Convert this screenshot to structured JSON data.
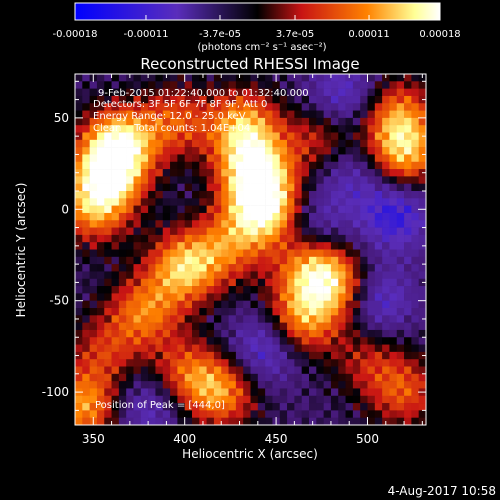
{
  "chart_data": {
    "type": "heatmap",
    "title": "Reconstructed RHESSI Image",
    "xlabel": "Heliocentric X (arcsec)",
    "ylabel": "Heliocentric Y (arcsec)",
    "xlim": [
      340,
      532
    ],
    "ylim": [
      -118,
      74
    ],
    "x_ticks": [
      350,
      400,
      450,
      500
    ],
    "y_ticks": [
      -100,
      -50,
      0,
      50
    ],
    "grid": false,
    "colormap": "blue-purple-red-yellow-white",
    "colors": {
      "background": "#000000",
      "low": "#0000ff",
      "mid_low": "#5a2dbb",
      "mid": "#c81414",
      "mid_high": "#ff8200",
      "high": "#ffff96",
      "top": "#ffffff"
    },
    "colorbar": {
      "range": [
        -0.00018,
        0.00018
      ],
      "tick_values": [
        -0.00018,
        -0.00011,
        -3.7e-05,
        3.7e-05,
        0.00011,
        0.00018
      ],
      "tick_labels": [
        "-0.00018",
        "-0.00011",
        "-3.7e-05",
        "3.7e-05",
        "0.00011",
        "0.00018"
      ],
      "unit_text": "(photons cm⁻² s⁻¹ asec⁻²)"
    },
    "annotations": {
      "time_range": "9-Feb-2015 01:22:40.000 to 01:32:40.000",
      "detectors": "Detectors: 3F 5F 6F 7F 8F 9F, Att 0",
      "energy_range": "Energy Range: 12.0 - 25.0 keV",
      "method_counts": "Clean    Total counts: 1.04E+04",
      "peak_position": "Position of Peak = [444,0]"
    },
    "bright_regions": [
      {
        "x": 364,
        "y": 36,
        "value": 0.00016
      },
      {
        "x": 358,
        "y": 18,
        "value": 0.00014
      },
      {
        "x": 350,
        "y": 0,
        "value": 0.0001
      },
      {
        "x": 395,
        "y": 48,
        "value": 8e-05
      },
      {
        "x": 444,
        "y": 0,
        "value": 0.00018
      },
      {
        "x": 438,
        "y": 22,
        "value": 0.00016
      },
      {
        "x": 432,
        "y": 46,
        "value": 0.00012
      },
      {
        "x": 424,
        "y": -20,
        "value": 8e-05
      },
      {
        "x": 400,
        "y": -32,
        "value": 0.00014
      },
      {
        "x": 378,
        "y": -56,
        "value": 0.0001
      },
      {
        "x": 356,
        "y": -78,
        "value": 6e-05
      },
      {
        "x": 470,
        "y": -32,
        "value": 0.00013
      },
      {
        "x": 462,
        "y": -62,
        "value": 0.00012
      },
      {
        "x": 484,
        "y": -44,
        "value": 0.0001
      },
      {
        "x": 420,
        "y": -100,
        "value": 0.00011
      },
      {
        "x": 400,
        "y": -90,
        "value": 8e-05
      },
      {
        "x": 520,
        "y": 30,
        "value": 0.00013
      },
      {
        "x": 516,
        "y": 52,
        "value": 0.0001
      },
      {
        "x": 520,
        "y": -100,
        "value": 8e-05
      },
      {
        "x": 345,
        "y": -108,
        "value": 0.00012
      },
      {
        "x": 475,
        "y": 38,
        "value": 7e-05
      },
      {
        "x": 500,
        "y": -82,
        "value": 5e-05
      }
    ],
    "dark_regions": [
      {
        "x": 515,
        "y": -3,
        "value": -0.00012
      },
      {
        "x": 505,
        "y": -50,
        "value": -0.00011
      },
      {
        "x": 445,
        "y": -75,
        "value": -0.00012
      },
      {
        "x": 487,
        "y": 62,
        "value": -0.0001
      },
      {
        "x": 380,
        "y": -108,
        "value": -9e-05
      },
      {
        "x": 470,
        "y": -10,
        "value": -9e-05
      },
      {
        "x": 490,
        "y": 20,
        "value": -8e-05
      }
    ]
  },
  "footer": {
    "timestamp": "4-Aug-2017 10:58"
  }
}
